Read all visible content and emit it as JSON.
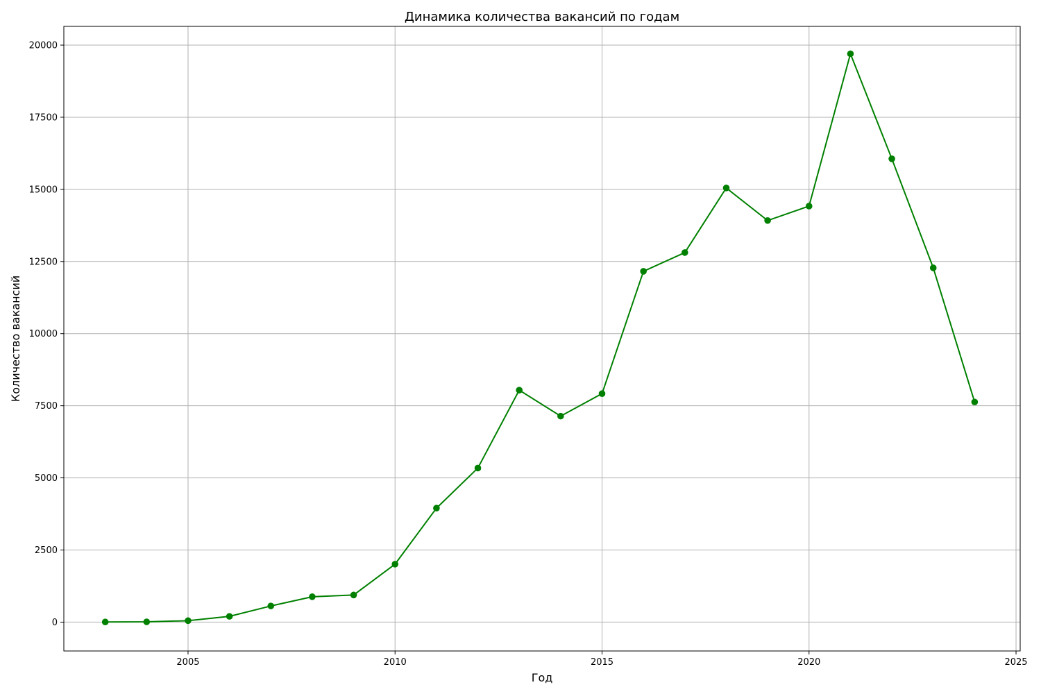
{
  "chart_data": {
    "type": "line",
    "title": "Динамика количества вакансий по годам",
    "xlabel": "Год",
    "ylabel": "Количество вакансий",
    "xlim": [
      2002,
      2025.1
    ],
    "ylim": [
      -1000,
      20650
    ],
    "xticks": [
      2005,
      2010,
      2015,
      2020,
      2025
    ],
    "yticks": [
      0,
      2500,
      5000,
      7500,
      10000,
      12500,
      15000,
      17500,
      20000
    ],
    "grid": true,
    "color": "#008000",
    "marker": "circle",
    "series": [
      {
        "x": [
          2003,
          2004,
          2005,
          2006,
          2007,
          2008,
          2009,
          2010,
          2011,
          2012,
          2013,
          2014,
          2015,
          2016,
          2017,
          2018,
          2019,
          2020,
          2021,
          2022,
          2023,
          2024
        ],
        "values": [
          5,
          10,
          50,
          200,
          560,
          880,
          940,
          2010,
          3950,
          5340,
          8040,
          7140,
          7920,
          12160,
          12810,
          15050,
          13920,
          14420,
          19700,
          16060,
          12280,
          7630
        ]
      }
    ]
  }
}
